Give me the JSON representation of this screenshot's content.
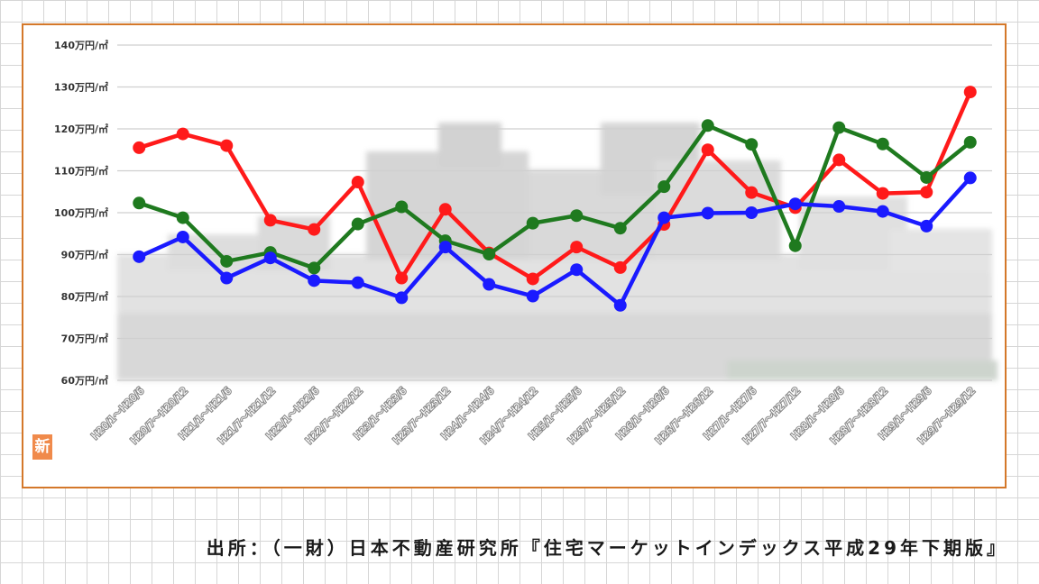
{
  "caption": "出所：（一財）日本不動産研究所『住宅マーケットインデックス平成29年下期版』",
  "logo_text": "新",
  "chart_data": {
    "type": "line",
    "title": "",
    "xlabel": "",
    "ylabel": "",
    "ylim": [
      60,
      140
    ],
    "yticks": [
      {
        "value": 60,
        "label": "60万円/㎡"
      },
      {
        "value": 70,
        "label": "70万円/㎡"
      },
      {
        "value": 80,
        "label": "80万円/㎡"
      },
      {
        "value": 90,
        "label": "90万円/㎡"
      },
      {
        "value": 100,
        "label": "100万円/㎡"
      },
      {
        "value": 110,
        "label": "110万円/㎡"
      },
      {
        "value": 120,
        "label": "120万円/㎡"
      },
      {
        "value": 130,
        "label": "130万円/㎡"
      },
      {
        "value": 140,
        "label": "140万円/㎡"
      }
    ],
    "grid": true,
    "legend": "none",
    "categories": [
      "H20/1～H20/6",
      "H20/7～H20/12",
      "H21/1～H21/6",
      "H21/7～H21/12",
      "H22/1～H22/6",
      "H22/7～H22/12",
      "H23/1～H23/6",
      "H23/7～H23/12",
      "H24/1～H24/6",
      "H24/7～H24/12",
      "H25/1～H25/6",
      "H25/7～H25/12",
      "H26/1～H26/6",
      "H26/7～H26/12",
      "H27/1～H27/6",
      "H27/7～H27/12",
      "H28/1～H28/6",
      "H28/7～H28/12",
      "H29/1～H29/6",
      "H29/7～H29/12"
    ],
    "series": [
      {
        "color": "#ff1a1a",
        "values": [
          115.5,
          118.8,
          116.0,
          98.2,
          96.0,
          107.3,
          84.4,
          100.8,
          90.4,
          84.2,
          91.8,
          86.9,
          97.2,
          115.0,
          104.8,
          101.2,
          112.6,
          104.6,
          104.9,
          128.8
        ]
      },
      {
        "color": "#1f7a1f",
        "values": [
          102.3,
          98.8,
          88.4,
          90.5,
          86.8,
          97.3,
          101.4,
          93.3,
          90.1,
          97.5,
          99.3,
          96.3,
          106.2,
          120.8,
          116.3,
          92.1,
          120.3,
          116.4,
          108.4,
          116.8
        ]
      },
      {
        "color": "#1a1aff",
        "values": [
          89.5,
          94.2,
          84.4,
          89.2,
          83.8,
          83.3,
          79.7,
          91.8,
          82.9,
          80.1,
          86.4,
          77.9,
          98.8,
          99.9,
          100.0,
          102.1,
          101.5,
          100.3,
          96.8,
          108.3
        ]
      }
    ]
  }
}
